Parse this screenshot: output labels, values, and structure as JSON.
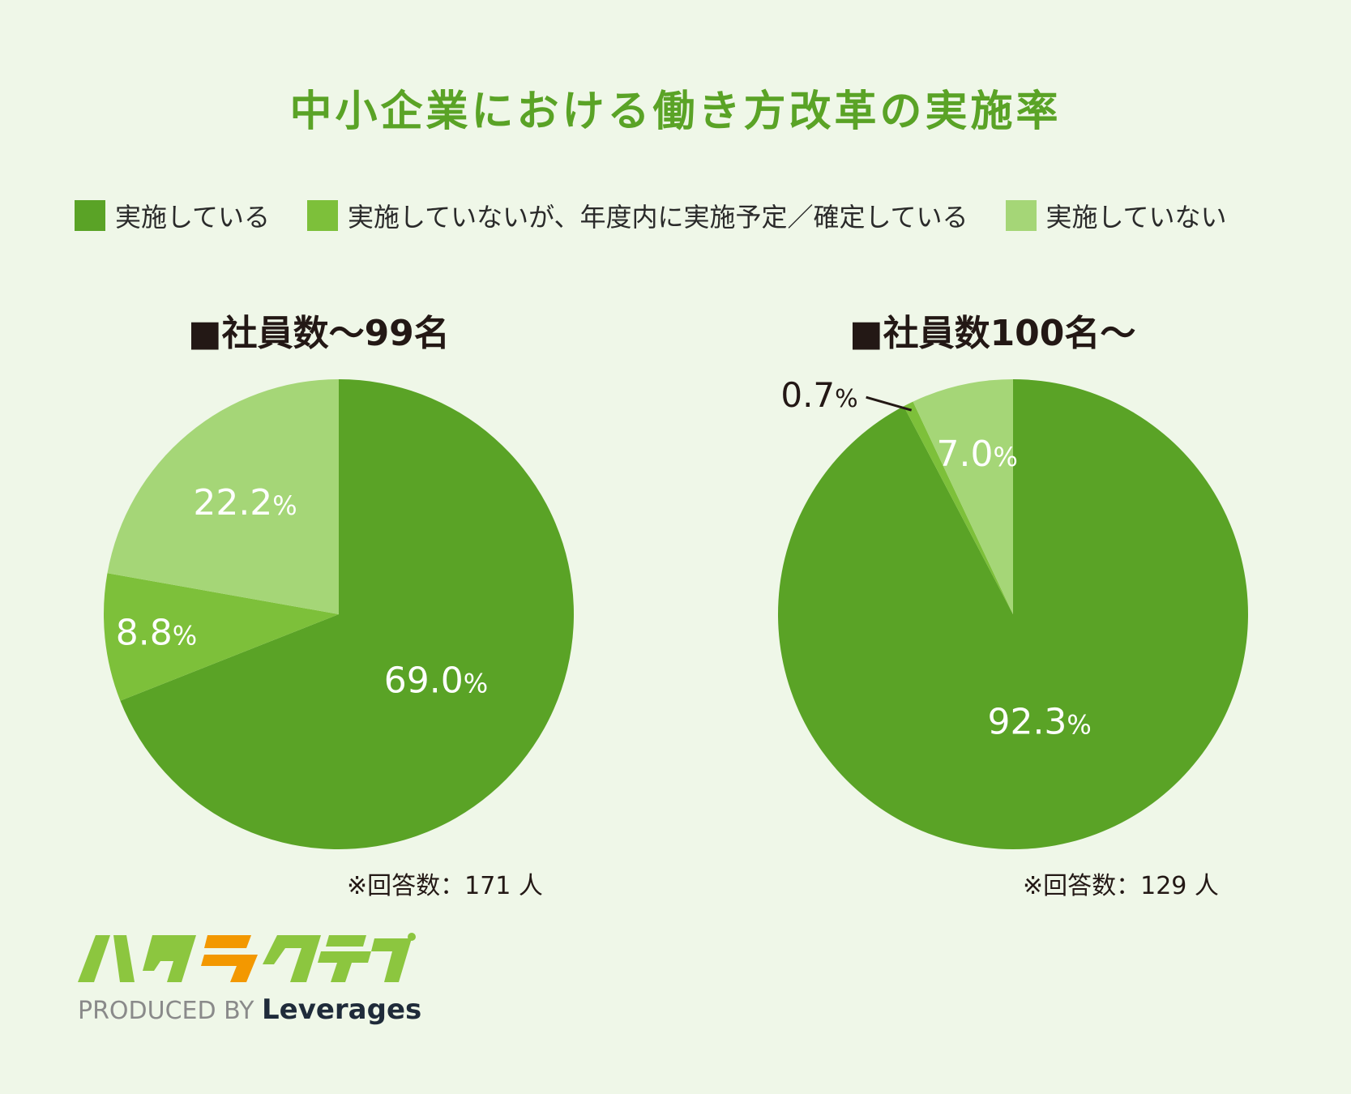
{
  "title": "中小企業における働き方改革の実施率",
  "legend": [
    {
      "label": "実施している",
      "color": "#5aa326"
    },
    {
      "label": "実施していないが、年度内に実施予定／確定している",
      "color": "#7dc03a"
    },
    {
      "label": "実施していない",
      "color": "#a5d677"
    }
  ],
  "chart_data": [
    {
      "type": "pie",
      "title": "■社員数～99名",
      "series": [
        {
          "name": "実施している",
          "value": 69.0,
          "label": "69.0",
          "color": "#5aa326"
        },
        {
          "name": "実施していないが、年度内に実施予定／確定している",
          "value": 8.8,
          "label": "8.8",
          "color": "#7dc03a"
        },
        {
          "name": "実施していない",
          "value": 22.2,
          "label": "22.2",
          "color": "#a5d677"
        }
      ],
      "unit": "%",
      "note": "※回答数：171 人"
    },
    {
      "type": "pie",
      "title": "■社員数100名～",
      "series": [
        {
          "name": "実施している",
          "value": 92.3,
          "label": "92.3",
          "color": "#5aa326"
        },
        {
          "name": "実施していないが、年度内に実施予定／確定している",
          "value": 0.7,
          "label": "0.7",
          "color": "#7dc03a"
        },
        {
          "name": "実施していない",
          "value": 7.0,
          "label": "7.0",
          "color": "#a5d677"
        }
      ],
      "unit": "%",
      "note": "※回答数：129 人"
    }
  ],
  "logo": {
    "mark": "ハタラクティブ",
    "produced_by": "PRODUCED BY",
    "brand": "Leverages"
  }
}
